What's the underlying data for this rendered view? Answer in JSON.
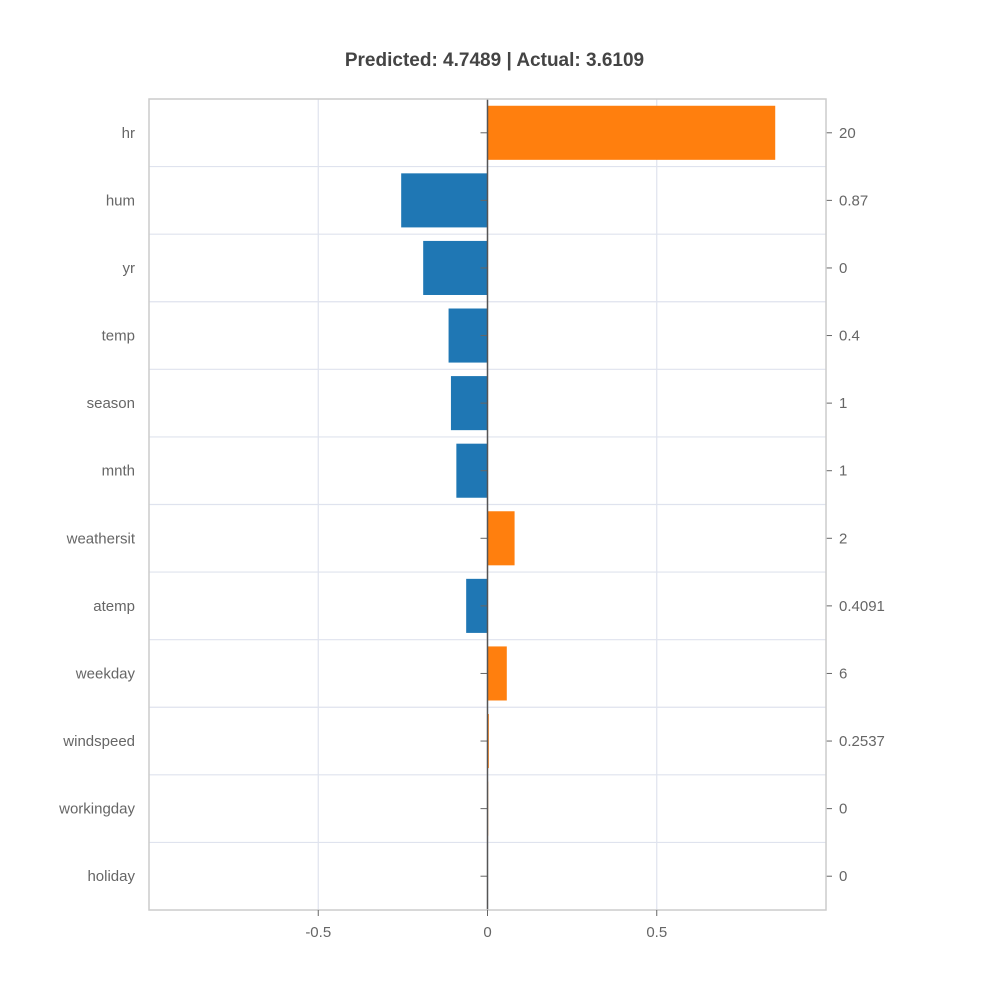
{
  "chart_data": {
    "type": "bar",
    "orientation": "horizontal",
    "title": "Predicted: 4.7489 | Actual: 3.6109",
    "features": [
      "hr",
      "hum",
      "yr",
      "temp",
      "season",
      "mnth",
      "weathersit",
      "atemp",
      "weekday",
      "windspeed",
      "workingday",
      "holiday"
    ],
    "values": [
      0.85,
      -0.255,
      -0.19,
      -0.115,
      -0.108,
      -0.092,
      0.08,
      -0.063,
      0.057,
      0.004,
      0.002,
      0.0
    ],
    "feature_values": [
      "20",
      "0.87",
      "0",
      "0.4",
      "1",
      "1",
      "2",
      "0.4091",
      "6",
      "0.2537",
      "0",
      "0"
    ],
    "x_ticks": [
      -0.5,
      0,
      0.5
    ],
    "x_tick_labels": [
      "-0.5",
      "0",
      "0.5"
    ],
    "xlim": [
      -1.0,
      1.0
    ],
    "xlabel": "",
    "ylabel": "",
    "grid": true,
    "colors": {
      "positive": "#ff7f0e",
      "negative": "#1f77b4"
    }
  }
}
